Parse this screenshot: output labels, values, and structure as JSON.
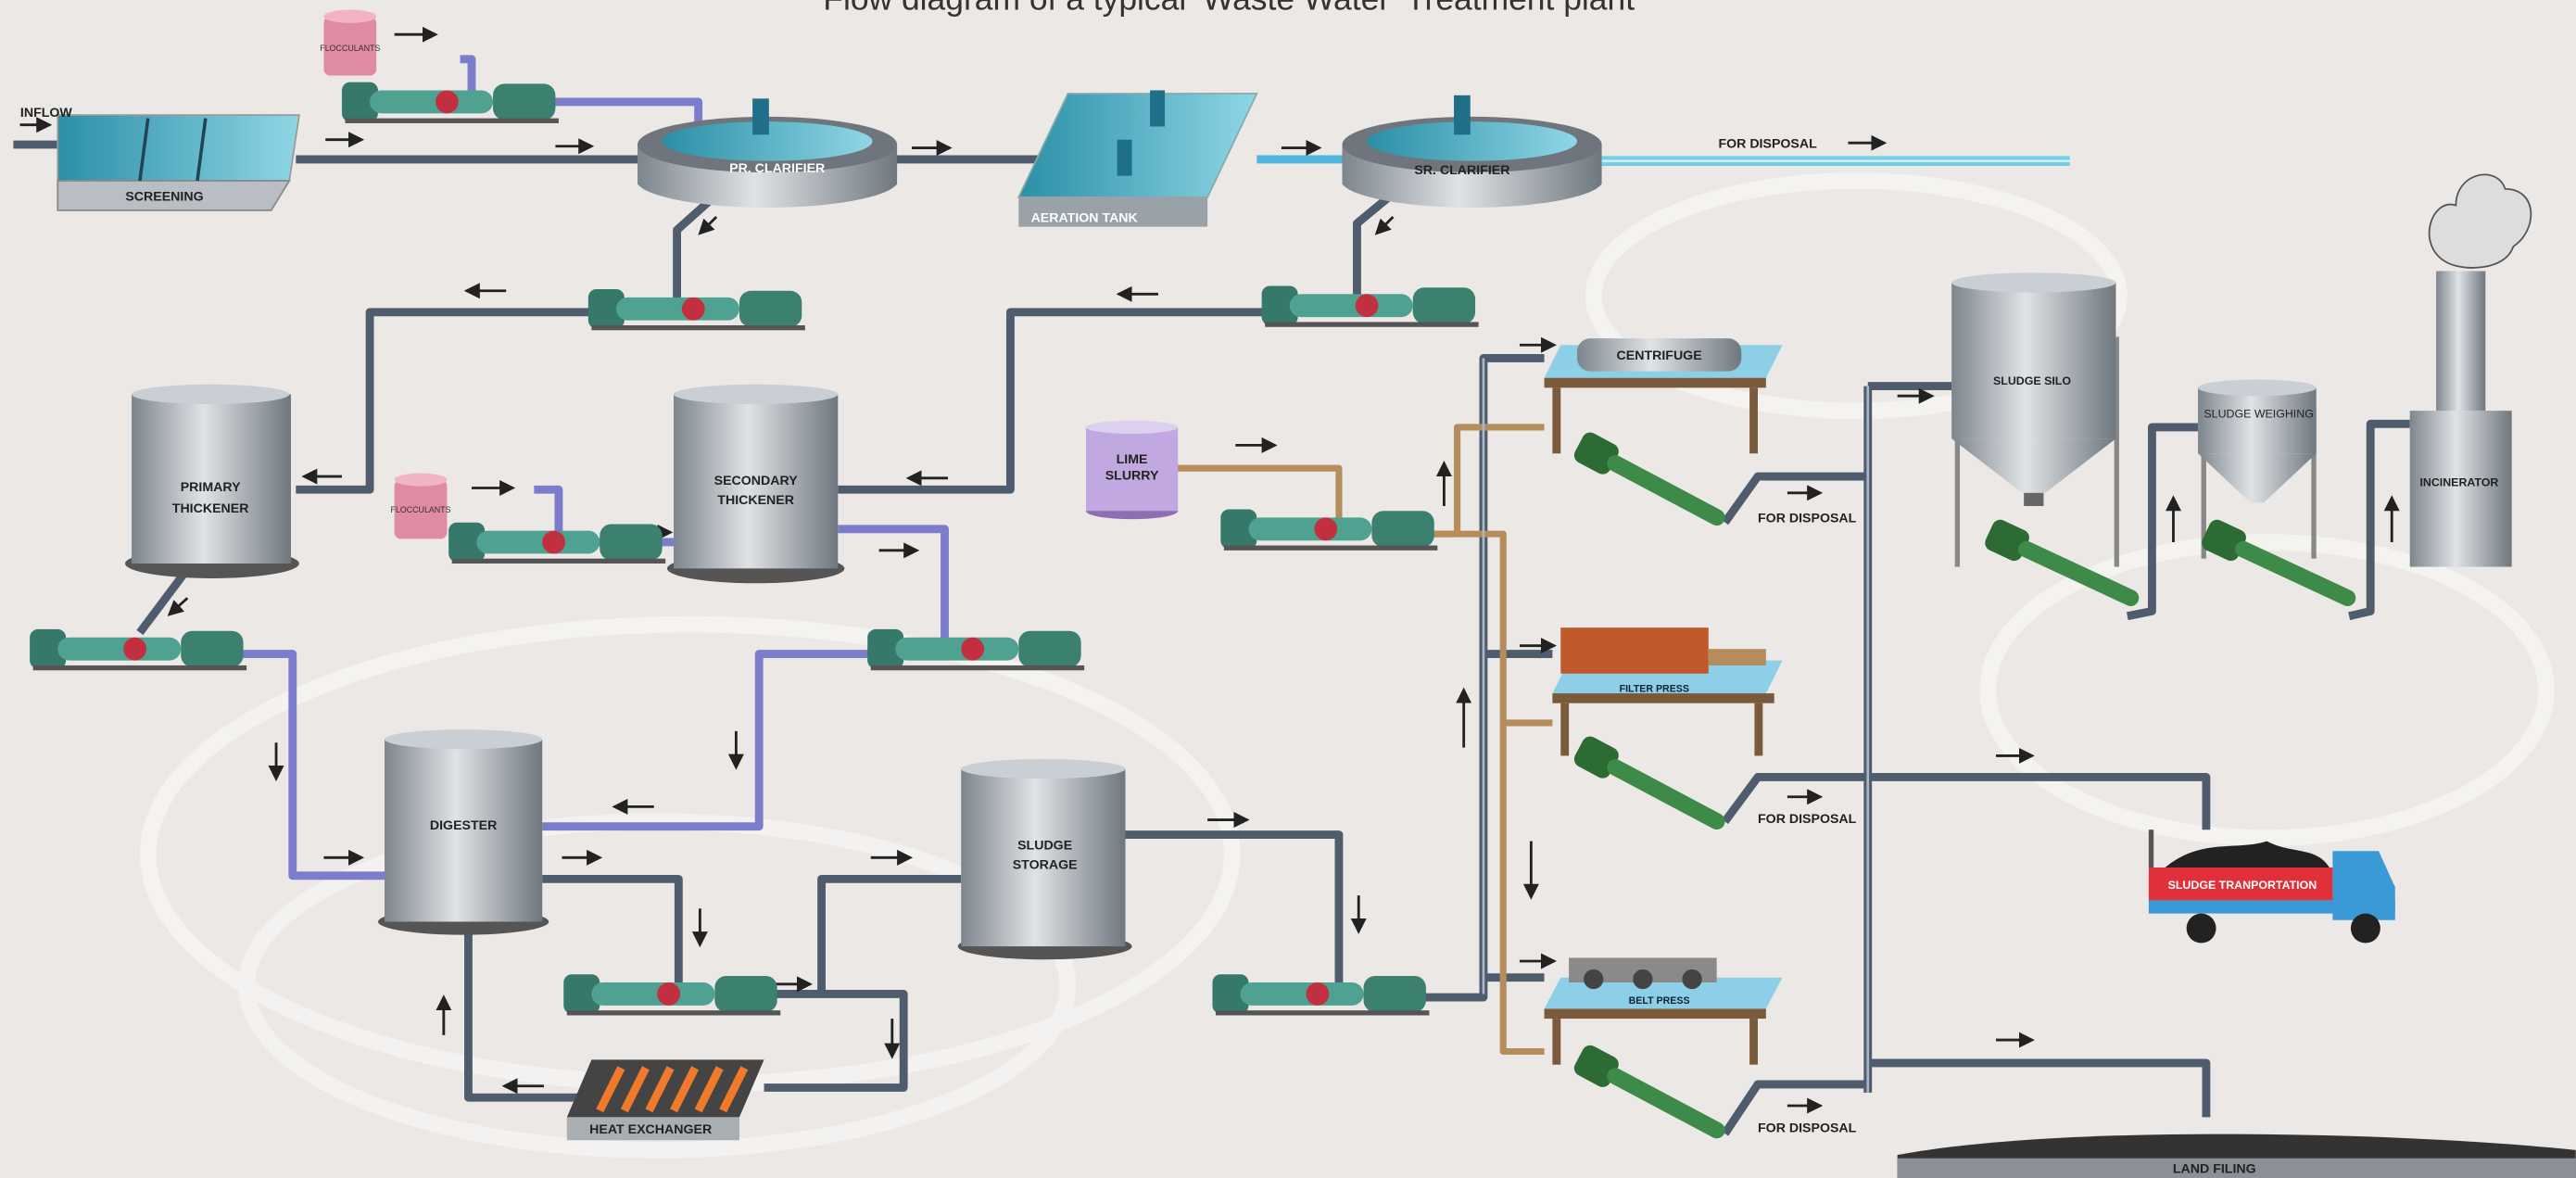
{
  "title": "Flow diagram of a typical ‘Waste Water’ Treatment plant",
  "nodes": [
    {
      "label": "INFLOW"
    },
    {
      "label": "SCREENING"
    },
    {
      "label": "FLOCCULANTS"
    },
    {
      "label": "PR. CLARIFIER"
    },
    {
      "label": "AERATION TANK"
    },
    {
      "label": "SR. CLARIFIER"
    },
    {
      "label": "FOR DISPOSAL"
    },
    {
      "label": [
        "PRIMARY",
        "THICKENER"
      ]
    },
    {
      "label": "FLOCCULANTS"
    },
    {
      "label": [
        "SECONDARY",
        "THICKENER"
      ]
    },
    {
      "label": [
        "LIME",
        "SLURRY"
      ]
    },
    {
      "label": "CENTRIFUGE"
    },
    {
      "label": "FOR DISPOSAL"
    },
    {
      "label": "FILTER PRESS"
    },
    {
      "label": "FOR DISPOSAL"
    },
    {
      "label": "BELT PRESS"
    },
    {
      "label": "FOR DISPOSAL"
    },
    {
      "label": "SLUDGE SILO"
    },
    {
      "label": "SLUDGE WEIGHING"
    },
    {
      "label": "INCINERATOR"
    },
    {
      "label": "DIGESTER"
    },
    {
      "label": [
        "SLUDGE",
        "STORAGE"
      ]
    },
    {
      "label": "HEAT EXCHANGER"
    },
    {
      "label": "SLUDGE TRANPORTATION"
    },
    {
      "label": "LAND FILING"
    }
  ]
}
